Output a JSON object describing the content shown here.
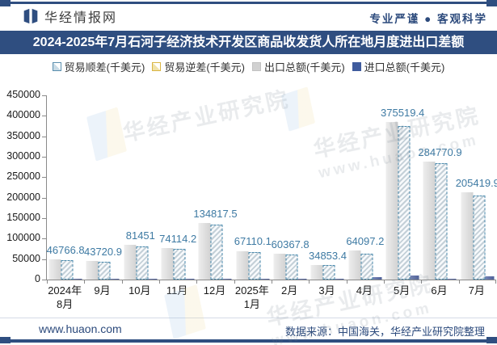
{
  "header": {
    "brand": "华经情报网",
    "slogan": "专业严谨 ● 客观科学"
  },
  "title": "2024-2025年7月石河子经济技术开发区商品收发货人所在地月度进出口差额",
  "legend": [
    {
      "label": "贸易顺差(千美元)",
      "marker": "hollow-blue"
    },
    {
      "label": "贸易逆差(千美元)",
      "marker": "hollow-gold"
    },
    {
      "label": "出口总额(千美元)",
      "marker": "solid-gray"
    },
    {
      "label": "进口总额(千美元)",
      "marker": "solid-navy"
    }
  ],
  "chart_data": {
    "type": "bar",
    "title": "2024-2025年7月石河子经济技术开发区商品收发货人所在地月度进出口差额",
    "unit": "千美元",
    "categories": [
      "2024年8月",
      "9月",
      "10月",
      "11月",
      "12月",
      "2025年1月",
      "2月",
      "3月",
      "4月",
      "5月",
      "6月",
      "7月"
    ],
    "category_lines": [
      [
        "2024年",
        "8月"
      ],
      [
        "9月"
      ],
      [
        "10月"
      ],
      [
        "11月"
      ],
      [
        "12月"
      ],
      [
        "2025年",
        "1月"
      ],
      [
        "2月"
      ],
      [
        "3月"
      ],
      [
        "4月"
      ],
      [
        "5月"
      ],
      [
        "6月"
      ],
      [
        "7月"
      ]
    ],
    "series": [
      {
        "name": "贸易顺差(千美元)",
        "role": "surplus",
        "values": [
          46766.8,
          43720.9,
          81451,
          74114.2,
          134817.5,
          67110.1,
          60367.8,
          34853.4,
          64097.2,
          375519.4,
          284770.9,
          205419.9
        ]
      },
      {
        "name": "贸易逆差(千美元)",
        "role": "deficit",
        "values": [
          0,
          0,
          0,
          0,
          0,
          0,
          0,
          0,
          0,
          0,
          0,
          0
        ]
      },
      {
        "name": "出口总额(千美元)",
        "role": "export",
        "estimated": true,
        "values": [
          49300,
          46200,
          84000,
          76600,
          137300,
          70100,
          62400,
          36400,
          70600,
          385500,
          287300,
          213900
        ]
      },
      {
        "name": "进口总额(千美元)",
        "role": "import",
        "estimated": true,
        "values": [
          2500,
          2500,
          2500,
          2500,
          2500,
          3000,
          2000,
          1500,
          6500,
          10000,
          2500,
          8500
        ]
      }
    ],
    "data_labels": [
      "46766.8",
      "43720.9",
      "81451",
      "74114.2",
      "134817.5",
      "67110.1",
      "60367.8",
      "34853.4",
      "64097.2",
      "375519.4",
      "284770.9",
      "205419.9"
    ],
    "labeled_series": "贸易顺差(千美元)",
    "ylim": [
      0,
      450000
    ],
    "ytick_step": 50000,
    "grid": false,
    "legend_position": "top",
    "note": "仅贸易顺差带数据标签；出口总额/进口总额数值按条形高度估算，贸易逆差各月为0未显示"
  },
  "watermark": {
    "name": "华经产业研究院",
    "site": "www.huaon.com"
  },
  "footer": {
    "site": "www.huaon.com",
    "source": "数据来源：中国海关，华经产业研究院整理"
  },
  "colors": {
    "navy": "#2f4e80",
    "footer_navy": "#2c4a7c",
    "label_blue": "#3e7aa3",
    "bar_gray": "#d8d8d8",
    "bar_import": "#5568a1",
    "surplus_border": "#4a8aad",
    "deficit_border": "#d9b544",
    "axis_gray": "#8a8a8a"
  }
}
